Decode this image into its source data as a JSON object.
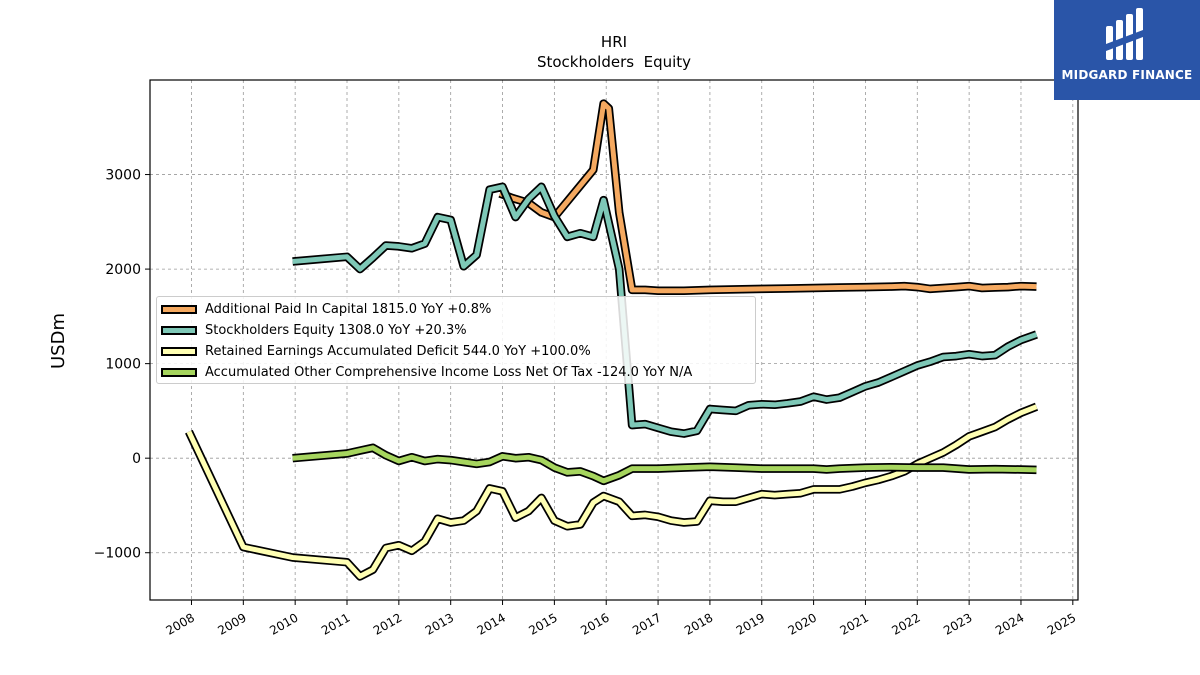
{
  "brand": {
    "name": "MIDGARD FINANCE",
    "color": "#2a55a8"
  },
  "chart_data": {
    "type": "line",
    "title": "HRI",
    "subtitle": "Stockholders  Equity",
    "ylabel": "USDm",
    "xlabel": "",
    "xlim": [
      2007.2,
      2025.1
    ],
    "ylim": [
      -1500,
      4000
    ],
    "yticks": [
      -1000,
      0,
      1000,
      2000,
      3000
    ],
    "ytick_labels": [
      "−1000",
      "0",
      "1000",
      "2000",
      "3000"
    ],
    "xticks": [
      2008,
      2009,
      2010,
      2011,
      2012,
      2013,
      2014,
      2015,
      2016,
      2017,
      2018,
      2019,
      2020,
      2021,
      2022,
      2023,
      2024,
      2025
    ],
    "grid": true,
    "legend_position": "center-left",
    "series": [
      {
        "name": "Additional Paid In Capital",
        "legend_label": "Additional Paid In Capital  1815.0 YoY +0.8%",
        "color": "#f5a960",
        "x": [
          2013.95,
          2014.2,
          2014.5,
          2014.75,
          2015.0,
          2015.75,
          2015.95,
          2016.05,
          2016.25,
          2016.5,
          2016.75,
          2017.0,
          2017.5,
          2018.0,
          2018.5,
          2019.0,
          2019.5,
          2020.0,
          2020.5,
          2021.0,
          2021.5,
          2021.75,
          2022.0,
          2022.25,
          2022.5,
          2022.75,
          2023.0,
          2023.25,
          2023.5,
          2023.75,
          2024.0,
          2024.3
        ],
        "values": [
          2800,
          2750,
          2700,
          2600,
          2550,
          3050,
          3750,
          3700,
          2600,
          1780,
          1780,
          1770,
          1770,
          1780,
          1785,
          1790,
          1795,
          1800,
          1805,
          1810,
          1815,
          1820,
          1810,
          1790,
          1800,
          1810,
          1820,
          1800,
          1805,
          1810,
          1820,
          1815
        ]
      },
      {
        "name": "Stockholders Equity",
        "legend_label": "Stockholders Equity  1308.0 YoY +20.3%",
        "color": "#7ec8b7",
        "x": [
          2009.95,
          2011.0,
          2011.25,
          2011.5,
          2011.75,
          2012.0,
          2012.25,
          2012.5,
          2012.75,
          2013.0,
          2013.25,
          2013.5,
          2013.75,
          2014.0,
          2014.25,
          2014.5,
          2014.75,
          2015.0,
          2015.25,
          2015.5,
          2015.75,
          2015.95,
          2016.25,
          2016.5,
          2016.75,
          2017.0,
          2017.25,
          2017.5,
          2017.75,
          2018.0,
          2018.25,
          2018.5,
          2018.75,
          2019.0,
          2019.25,
          2019.5,
          2019.75,
          2020.0,
          2020.25,
          2020.5,
          2020.75,
          2021.0,
          2021.25,
          2021.5,
          2021.75,
          2022.0,
          2022.25,
          2022.5,
          2022.75,
          2023.0,
          2023.25,
          2023.5,
          2023.75,
          2024.0,
          2024.3
        ],
        "values": [
          2080,
          2130,
          2000,
          2120,
          2250,
          2240,
          2220,
          2270,
          2550,
          2520,
          2030,
          2150,
          2840,
          2870,
          2550,
          2740,
          2870,
          2560,
          2340,
          2380,
          2340,
          2730,
          2000,
          350,
          360,
          320,
          280,
          260,
          290,
          520,
          510,
          500,
          560,
          570,
          565,
          580,
          600,
          650,
          620,
          640,
          700,
          760,
          800,
          860,
          920,
          980,
          1020,
          1070,
          1080,
          1100,
          1080,
          1090,
          1180,
          1250,
          1308
        ]
      },
      {
        "name": "Retained Earnings Accumulated Deficit",
        "legend_label": "Retained Earnings Accumulated Deficit  544.0 YoY +100.0%",
        "color": "#ffffb3",
        "x": [
          2007.95,
          2009.0,
          2009.95,
          2011.0,
          2011.25,
          2011.5,
          2011.75,
          2012.0,
          2012.25,
          2012.5,
          2012.75,
          2013.0,
          2013.25,
          2013.5,
          2013.75,
          2014.0,
          2014.25,
          2014.5,
          2014.75,
          2015.0,
          2015.25,
          2015.5,
          2015.75,
          2015.95,
          2016.25,
          2016.5,
          2016.75,
          2017.0,
          2017.25,
          2017.5,
          2017.75,
          2018.0,
          2018.25,
          2018.5,
          2018.75,
          2019.0,
          2019.25,
          2019.5,
          2019.75,
          2020.0,
          2020.25,
          2020.5,
          2020.75,
          2021.0,
          2021.25,
          2021.5,
          2021.75,
          2022.0,
          2022.25,
          2022.5,
          2022.75,
          2023.0,
          2023.25,
          2023.5,
          2023.75,
          2024.0,
          2024.3
        ],
        "values": [
          280,
          -940,
          -1050,
          -1100,
          -1250,
          -1180,
          -950,
          -920,
          -980,
          -880,
          -640,
          -680,
          -660,
          -560,
          -320,
          -350,
          -630,
          -560,
          -420,
          -660,
          -720,
          -700,
          -470,
          -400,
          -460,
          -610,
          -600,
          -620,
          -660,
          -680,
          -670,
          -450,
          -460,
          -460,
          -420,
          -380,
          -390,
          -380,
          -370,
          -330,
          -330,
          -330,
          -300,
          -260,
          -230,
          -190,
          -140,
          -60,
          0,
          60,
          140,
          230,
          280,
          330,
          410,
          480,
          544
        ]
      },
      {
        "name": "Accumulated Other Comprehensive Income Loss Net Of Tax",
        "legend_label": "Accumulated Other Comprehensive Income Loss Net Of Tax  -124.0 YoY N/A",
        "color": "#a6d55e",
        "x": [
          2009.95,
          2011.0,
          2011.25,
          2011.5,
          2011.75,
          2012.0,
          2012.25,
          2012.5,
          2012.75,
          2013.0,
          2013.25,
          2013.5,
          2013.75,
          2014.0,
          2014.25,
          2014.5,
          2014.75,
          2015.0,
          2015.25,
          2015.5,
          2015.75,
          2015.95,
          2016.25,
          2016.5,
          2016.75,
          2017.0,
          2017.5,
          2018.0,
          2018.5,
          2019.0,
          2019.5,
          2020.0,
          2020.25,
          2020.5,
          2021.0,
          2021.5,
          2022.0,
          2022.5,
          2023.0,
          2023.5,
          2024.0,
          2024.3
        ],
        "values": [
          0,
          50,
          80,
          110,
          30,
          -30,
          10,
          -30,
          -10,
          -20,
          -40,
          -60,
          -40,
          20,
          0,
          10,
          -20,
          -100,
          -150,
          -140,
          -190,
          -240,
          -180,
          -110,
          -110,
          -110,
          -100,
          -90,
          -100,
          -110,
          -110,
          -110,
          -120,
          -110,
          -100,
          -95,
          -100,
          -100,
          -120,
          -115,
          -120,
          -124
        ]
      }
    ]
  }
}
